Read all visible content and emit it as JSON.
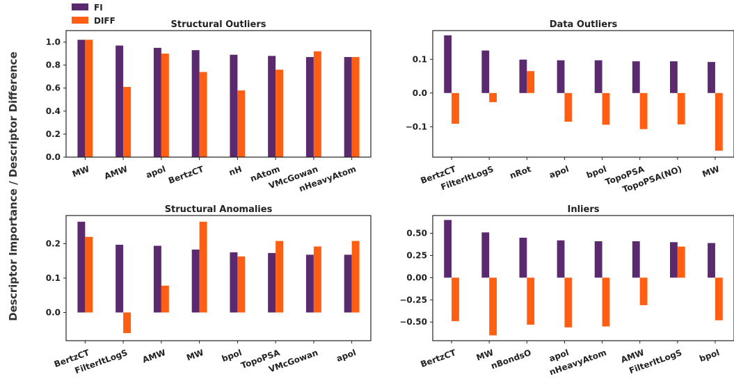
{
  "figure": {
    "ylabel": "Descriptor Importance / Descriptor Difference",
    "legend": [
      {
        "name": "FI",
        "color": "#5b2a6e"
      },
      {
        "name": "DIFF",
        "color": "#ff5e13"
      }
    ]
  },
  "chart_data": [
    {
      "type": "bar",
      "title": "Structural Outliers",
      "categories": [
        "MW",
        "AMW",
        "apol",
        "BertzCT",
        "nH",
        "nAtom",
        "VMcGowan",
        "nHeavyAtom"
      ],
      "series": [
        {
          "name": "FI",
          "values": [
            1.02,
            0.97,
            0.95,
            0.93,
            0.89,
            0.88,
            0.87,
            0.87
          ]
        },
        {
          "name": "DIFF",
          "values": [
            1.02,
            0.61,
            0.9,
            0.74,
            0.58,
            0.76,
            0.92,
            0.87
          ]
        }
      ],
      "ylim": [
        0,
        1.1
      ],
      "yticks": [
        0.0,
        0.2,
        0.4,
        0.6,
        0.8,
        1.0
      ],
      "ytick_labels": [
        "0.0",
        "0.2",
        "0.4",
        "0.6",
        "0.8",
        "1.0"
      ]
    },
    {
      "type": "bar",
      "title": "Data Outliers",
      "categories": [
        "BertzCT",
        "FilterItLogS",
        "nRot",
        "apol",
        "bpol",
        "TopoPSA",
        "TopoPSA(NO)",
        "MW"
      ],
      "series": [
        {
          "name": "FI",
          "values": [
            0.171,
            0.126,
            0.099,
            0.097,
            0.097,
            0.094,
            0.094,
            0.092
          ]
        },
        {
          "name": "DIFF",
          "values": [
            -0.091,
            -0.027,
            0.065,
            -0.085,
            -0.094,
            -0.107,
            -0.093,
            -0.171
          ]
        }
      ],
      "ylim": [
        -0.19,
        0.185
      ],
      "yticks": [
        -0.1,
        0.0,
        0.1
      ],
      "ytick_labels": [
        "−0.1",
        "0.0",
        "0.1"
      ]
    },
    {
      "type": "bar",
      "title": "Structural Anomalies",
      "categories": [
        "BertzCT",
        "FilterItLogS",
        "AMW",
        "MW",
        "bpol",
        "TopoPSA",
        "VMcGowan",
        "apol"
      ],
      "series": [
        {
          "name": "FI",
          "values": [
            0.264,
            0.197,
            0.194,
            0.183,
            0.175,
            0.173,
            0.168,
            0.168
          ]
        },
        {
          "name": "DIFF",
          "values": [
            0.22,
            -0.06,
            0.078,
            0.264,
            0.163,
            0.208,
            0.192,
            0.208
          ]
        }
      ],
      "ylim": [
        -0.082,
        0.282
      ],
      "yticks": [
        0.0,
        0.1,
        0.2
      ],
      "ytick_labels": [
        "0.0",
        "0.1",
        "0.2"
      ]
    },
    {
      "type": "bar",
      "title": "Inliers",
      "categories": [
        "BertzCT",
        "MW",
        "nBondsO",
        "apol",
        "nHeavyAtom",
        "AMW",
        "FilterItLogS",
        "bpol"
      ],
      "series": [
        {
          "name": "FI",
          "values": [
            0.65,
            0.51,
            0.45,
            0.42,
            0.41,
            0.41,
            0.4,
            0.39
          ]
        },
        {
          "name": "DIFF",
          "values": [
            -0.49,
            -0.65,
            -0.53,
            -0.56,
            -0.55,
            -0.31,
            0.35,
            -0.48
          ]
        }
      ],
      "ylim": [
        -0.71,
        0.7
      ],
      "yticks": [
        -0.5,
        -0.25,
        0.0,
        0.25,
        0.5
      ],
      "ytick_labels": [
        "−0.50",
        "−0.25",
        "0.00",
        "0.25",
        "0.50"
      ]
    }
  ]
}
